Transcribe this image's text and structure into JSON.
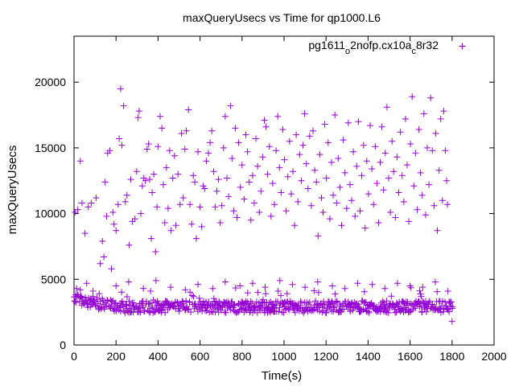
{
  "chart_data": {
    "type": "scatter",
    "title": "maxQueryUsecs vs Time for qp1000.L6",
    "xlabel": "Time(s)",
    "ylabel": "maxQueryUsecs",
    "xlim": [
      0,
      2000
    ],
    "ylim": [
      0,
      23500
    ],
    "x_ticks": [
      "0",
      "200",
      "400",
      "600",
      "800",
      "1000",
      "1200",
      "1400",
      "1600",
      "1800",
      "2000"
    ],
    "y_ticks": [
      "0",
      "5000",
      "10000",
      "15000",
      "20000"
    ],
    "grid": false,
    "legend_position": "top-right",
    "marker": "+",
    "series": [
      {
        "name_parts": [
          "pg1611",
          "o",
          "2nofp.cx10a",
          "c",
          "8r32"
        ],
        "color": "#9400d3",
        "points": [
          [
            5,
            10100
          ],
          [
            12,
            4300
          ],
          [
            18,
            10300
          ],
          [
            30,
            14000
          ],
          [
            38,
            10800
          ],
          [
            52,
            8500
          ],
          [
            68,
            10500
          ],
          [
            82,
            10800
          ],
          [
            105,
            11200
          ],
          [
            125,
            6200
          ],
          [
            135,
            7900
          ],
          [
            142,
            6700
          ],
          [
            148,
            12400
          ],
          [
            155,
            9800
          ],
          [
            160,
            14600
          ],
          [
            170,
            14800
          ],
          [
            178,
            5800
          ],
          [
            185,
            10100
          ],
          [
            190,
            9200
          ],
          [
            200,
            8700
          ],
          [
            210,
            10700
          ],
          [
            215,
            15700
          ],
          [
            222,
            19500
          ],
          [
            228,
            15200
          ],
          [
            236,
            18200
          ],
          [
            244,
            10900
          ],
          [
            252,
            11400
          ],
          [
            262,
            7600
          ],
          [
            270,
            12600
          ],
          [
            278,
            9400
          ],
          [
            290,
            9600
          ],
          [
            298,
            13200
          ],
          [
            305,
            17300
          ],
          [
            310,
            17800
          ],
          [
            318,
            10000
          ],
          [
            325,
            12100
          ],
          [
            332,
            12700
          ],
          [
            340,
            12500
          ],
          [
            348,
            14900
          ],
          [
            355,
            15300
          ],
          [
            360,
            12600
          ],
          [
            368,
            8100
          ],
          [
            372,
            11600
          ],
          [
            380,
            13000
          ],
          [
            388,
            7100
          ],
          [
            395,
            10500
          ],
          [
            400,
            15100
          ],
          [
            410,
            17400
          ],
          [
            418,
            16500
          ],
          [
            425,
            12200
          ],
          [
            432,
            9300
          ],
          [
            440,
            13500
          ],
          [
            448,
            10400
          ],
          [
            455,
            14800
          ],
          [
            462,
            8700
          ],
          [
            470,
            12700
          ],
          [
            478,
            14400
          ],
          [
            485,
            9100
          ],
          [
            495,
            13000
          ],
          [
            505,
            10700
          ],
          [
            512,
            16100
          ],
          [
            520,
            11200
          ],
          [
            528,
            14900
          ],
          [
            535,
            16300
          ],
          [
            545,
            17900
          ],
          [
            552,
            10700
          ],
          [
            560,
            9200
          ],
          [
            568,
            12900
          ],
          [
            575,
            12400
          ],
          [
            582,
            8100
          ],
          [
            590,
            14700
          ],
          [
            600,
            10500
          ],
          [
            608,
            9000
          ],
          [
            615,
            12100
          ],
          [
            622,
            11900
          ],
          [
            630,
            14000
          ],
          [
            640,
            14600
          ],
          [
            648,
            15400
          ],
          [
            656,
            16300
          ],
          [
            665,
            13200
          ],
          [
            672,
            10500
          ],
          [
            680,
            11700
          ],
          [
            688,
            12600
          ],
          [
            696,
            9300
          ],
          [
            704,
            10600
          ],
          [
            712,
            15000
          ],
          [
            720,
            17400
          ],
          [
            728,
            12700
          ],
          [
            736,
            11300
          ],
          [
            745,
            18200
          ],
          [
            752,
            14200
          ],
          [
            760,
            10200
          ],
          [
            768,
            16500
          ],
          [
            776,
            9700
          ],
          [
            784,
            15400
          ],
          [
            792,
            12000
          ],
          [
            800,
            13700
          ],
          [
            810,
            11100
          ],
          [
            818,
            16000
          ],
          [
            826,
            14700
          ],
          [
            834,
            12400
          ],
          [
            842,
            9500
          ],
          [
            850,
            12900
          ],
          [
            858,
            10800
          ],
          [
            866,
            15700
          ],
          [
            874,
            13600
          ],
          [
            882,
            10100
          ],
          [
            890,
            11700
          ],
          [
            898,
            14300
          ],
          [
            906,
            17100
          ],
          [
            914,
            16600
          ],
          [
            922,
            13000
          ],
          [
            930,
            15100
          ],
          [
            938,
            9800
          ],
          [
            946,
            12300
          ],
          [
            954,
            10700
          ],
          [
            962,
            14800
          ],
          [
            970,
            17400
          ],
          [
            978,
            13500
          ],
          [
            986,
            11600
          ],
          [
            994,
            16400
          ],
          [
            1002,
            14100
          ],
          [
            1010,
            10200
          ],
          [
            1018,
            12800
          ],
          [
            1026,
            15500
          ],
          [
            1034,
            11500
          ],
          [
            1042,
            13200
          ],
          [
            1050,
            9100
          ],
          [
            1058,
            16000
          ],
          [
            1066,
            10900
          ],
          [
            1074,
            14500
          ],
          [
            1082,
            12500
          ],
          [
            1090,
            15200
          ],
          [
            1098,
            17600
          ],
          [
            1106,
            13800
          ],
          [
            1114,
            11900
          ],
          [
            1122,
            15900
          ],
          [
            1130,
            10600
          ],
          [
            1138,
            16300
          ],
          [
            1146,
            13300
          ],
          [
            1154,
            12400
          ],
          [
            1162,
            8300
          ],
          [
            1170,
            14500
          ],
          [
            1178,
            11200
          ],
          [
            1186,
            10100
          ],
          [
            1194,
            16800
          ],
          [
            1202,
            12700
          ],
          [
            1210,
            15400
          ],
          [
            1218,
            9600
          ],
          [
            1226,
            13900
          ],
          [
            1234,
            11400
          ],
          [
            1242,
            17500
          ],
          [
            1250,
            10800
          ],
          [
            1258,
            14200
          ],
          [
            1266,
            12000
          ],
          [
            1274,
            9100
          ],
          [
            1282,
            15600
          ],
          [
            1290,
            13100
          ],
          [
            1298,
            10400
          ],
          [
            1306,
            16900
          ],
          [
            1314,
            12200
          ],
          [
            1322,
            11000
          ],
          [
            1330,
            14700
          ],
          [
            1338,
            9800
          ],
          [
            1346,
            13600
          ],
          [
            1354,
            17000
          ],
          [
            1362,
            10200
          ],
          [
            1370,
            12900
          ],
          [
            1378,
            15200
          ],
          [
            1386,
            8900
          ],
          [
            1394,
            14000
          ],
          [
            1402,
            11500
          ],
          [
            1410,
            16700
          ],
          [
            1418,
            13400
          ],
          [
            1426,
            10700
          ],
          [
            1434,
            15100
          ],
          [
            1442,
            12300
          ],
          [
            1450,
            9300
          ],
          [
            1458,
            13900
          ],
          [
            1466,
            16600
          ],
          [
            1474,
            11800
          ],
          [
            1482,
            14600
          ],
          [
            1490,
            18100
          ],
          [
            1498,
            12700
          ],
          [
            1506,
            10100
          ],
          [
            1514,
            15500
          ],
          [
            1522,
            13200
          ],
          [
            1530,
            9700
          ],
          [
            1538,
            14300
          ],
          [
            1546,
            11600
          ],
          [
            1554,
            16200
          ],
          [
            1562,
            12900
          ],
          [
            1570,
            10900
          ],
          [
            1578,
            17200
          ],
          [
            1586,
            13700
          ],
          [
            1594,
            9400
          ],
          [
            1602,
            15300
          ],
          [
            1610,
            18900
          ],
          [
            1618,
            12100
          ],
          [
            1626,
            14600
          ],
          [
            1634,
            10300
          ],
          [
            1642,
            16400
          ],
          [
            1650,
            13100
          ],
          [
            1658,
            11400
          ],
          [
            1666,
            17600
          ],
          [
            1674,
            9900
          ],
          [
            1682,
            15000
          ],
          [
            1690,
            12200
          ],
          [
            1698,
            18800
          ],
          [
            1706,
            14800
          ],
          [
            1714,
            10600
          ],
          [
            1722,
            16100
          ],
          [
            1730,
            8700
          ],
          [
            1738,
            13300
          ],
          [
            1746,
            17200
          ],
          [
            1754,
            11000
          ],
          [
            1760,
            17800
          ],
          [
            1768,
            14800
          ],
          [
            1774,
            12500
          ],
          [
            1778,
            10700
          ],
          [
            30,
            4200
          ],
          [
            60,
            4700
          ],
          [
            90,
            4100
          ],
          [
            120,
            3900
          ],
          [
            200,
            4500
          ],
          [
            260,
            4800
          ],
          [
            330,
            4300
          ],
          [
            390,
            4900
          ],
          [
            460,
            4400
          ],
          [
            530,
            4200
          ],
          [
            590,
            4600
          ],
          [
            660,
            4300
          ],
          [
            720,
            4800
          ],
          [
            790,
            4500
          ],
          [
            850,
            4700
          ],
          [
            910,
            4400
          ],
          [
            980,
            4900
          ],
          [
            1040,
            4600
          ],
          [
            1100,
            4400
          ],
          [
            1160,
            4800
          ],
          [
            1230,
            4500
          ],
          [
            1290,
            4300
          ],
          [
            1350,
            4700
          ],
          [
            1420,
            4600
          ],
          [
            1480,
            4300
          ],
          [
            1540,
            4700
          ],
          [
            1600,
            4500
          ],
          [
            1660,
            4400
          ],
          [
            1720,
            4800
          ],
          [
            1780,
            4100
          ],
          [
            1800,
            1800
          ]
        ]
      }
    ]
  },
  "colors": {
    "series": "#9400d3",
    "axis": "#000000",
    "background": "#ffffff"
  }
}
